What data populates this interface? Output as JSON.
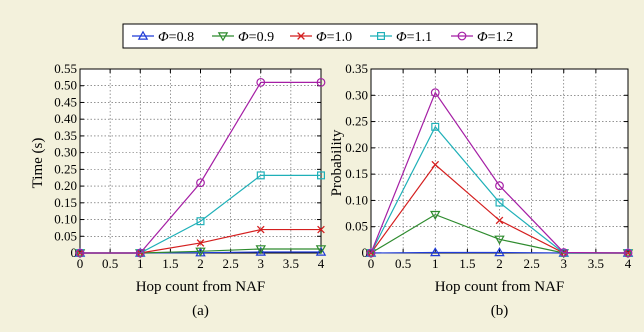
{
  "legend": {
    "entries": [
      {
        "symbol": "Φ",
        "value": "=0.8",
        "color": "#1f3bd6",
        "marker": "triangle-up"
      },
      {
        "symbol": "Φ",
        "value": "=0.9",
        "color": "#2e8b2e",
        "marker": "triangle-down"
      },
      {
        "symbol": "Φ",
        "value": "=1.0",
        "color": "#d41f1f",
        "marker": "x"
      },
      {
        "symbol": "Φ",
        "value": "=1.1",
        "color": "#1fb0b8",
        "marker": "square"
      },
      {
        "symbol": "Φ",
        "value": "=1.2",
        "color": "#a51fa5",
        "marker": "circle"
      }
    ]
  },
  "chart_data": [
    {
      "type": "line",
      "caption": "(a)",
      "xlabel": "Hop count from NAF",
      "ylabel": "Time (s)",
      "xlim": [
        0,
        4
      ],
      "ylim": [
        0,
        0.55
      ],
      "x_ticks": [
        "0",
        "0.5",
        "1",
        "1.5",
        "2",
        "2.5",
        "3",
        "3.5",
        "4"
      ],
      "y_ticks": [
        "0",
        "0.05",
        "0.10",
        "0.15",
        "0.20",
        "0.25",
        "0.30",
        "0.35",
        "0.40",
        "0.45",
        "0.50",
        "0.55"
      ],
      "grid": true,
      "x": [
        0,
        1,
        2,
        3,
        4
      ],
      "series": [
        {
          "name": "Φ=0.8",
          "values": [
            0,
            0,
            0.001,
            0.003,
            0.003
          ]
        },
        {
          "name": "Φ=0.9",
          "values": [
            0,
            0,
            0.005,
            0.012,
            0.012
          ]
        },
        {
          "name": "Φ=1.0",
          "values": [
            0,
            0,
            0.03,
            0.07,
            0.07
          ]
        },
        {
          "name": "Φ=1.1",
          "values": [
            0,
            0,
            0.095,
            0.232,
            0.232
          ]
        },
        {
          "name": "Φ=1.2",
          "values": [
            0,
            0,
            0.21,
            0.51,
            0.51
          ]
        }
      ]
    },
    {
      "type": "line",
      "caption": "(b)",
      "xlabel": "Hop count from NAF",
      "ylabel": "Probability",
      "xlim": [
        0,
        4
      ],
      "ylim": [
        0,
        0.35
      ],
      "x_ticks": [
        "0",
        "0.5",
        "1",
        "1.5",
        "2",
        "2.5",
        "3",
        "3.5",
        "4"
      ],
      "y_ticks": [
        "0",
        "0.05",
        "0.10",
        "0.15",
        "0.20",
        "0.25",
        "0.30",
        "0.35"
      ],
      "grid": true,
      "x": [
        0,
        1,
        2,
        3,
        4
      ],
      "series": [
        {
          "name": "Φ=0.8",
          "values": [
            0,
            0.001,
            0.001,
            0,
            0
          ]
        },
        {
          "name": "Φ=0.9",
          "values": [
            0,
            0.073,
            0.026,
            0,
            0
          ]
        },
        {
          "name": "Φ=1.0",
          "values": [
            0,
            0.168,
            0.062,
            0,
            0
          ]
        },
        {
          "name": "Φ=1.1",
          "values": [
            0,
            0.24,
            0.096,
            0,
            0
          ]
        },
        {
          "name": "Φ=1.2",
          "values": [
            0,
            0.305,
            0.128,
            0.001,
            0
          ]
        }
      ]
    }
  ]
}
